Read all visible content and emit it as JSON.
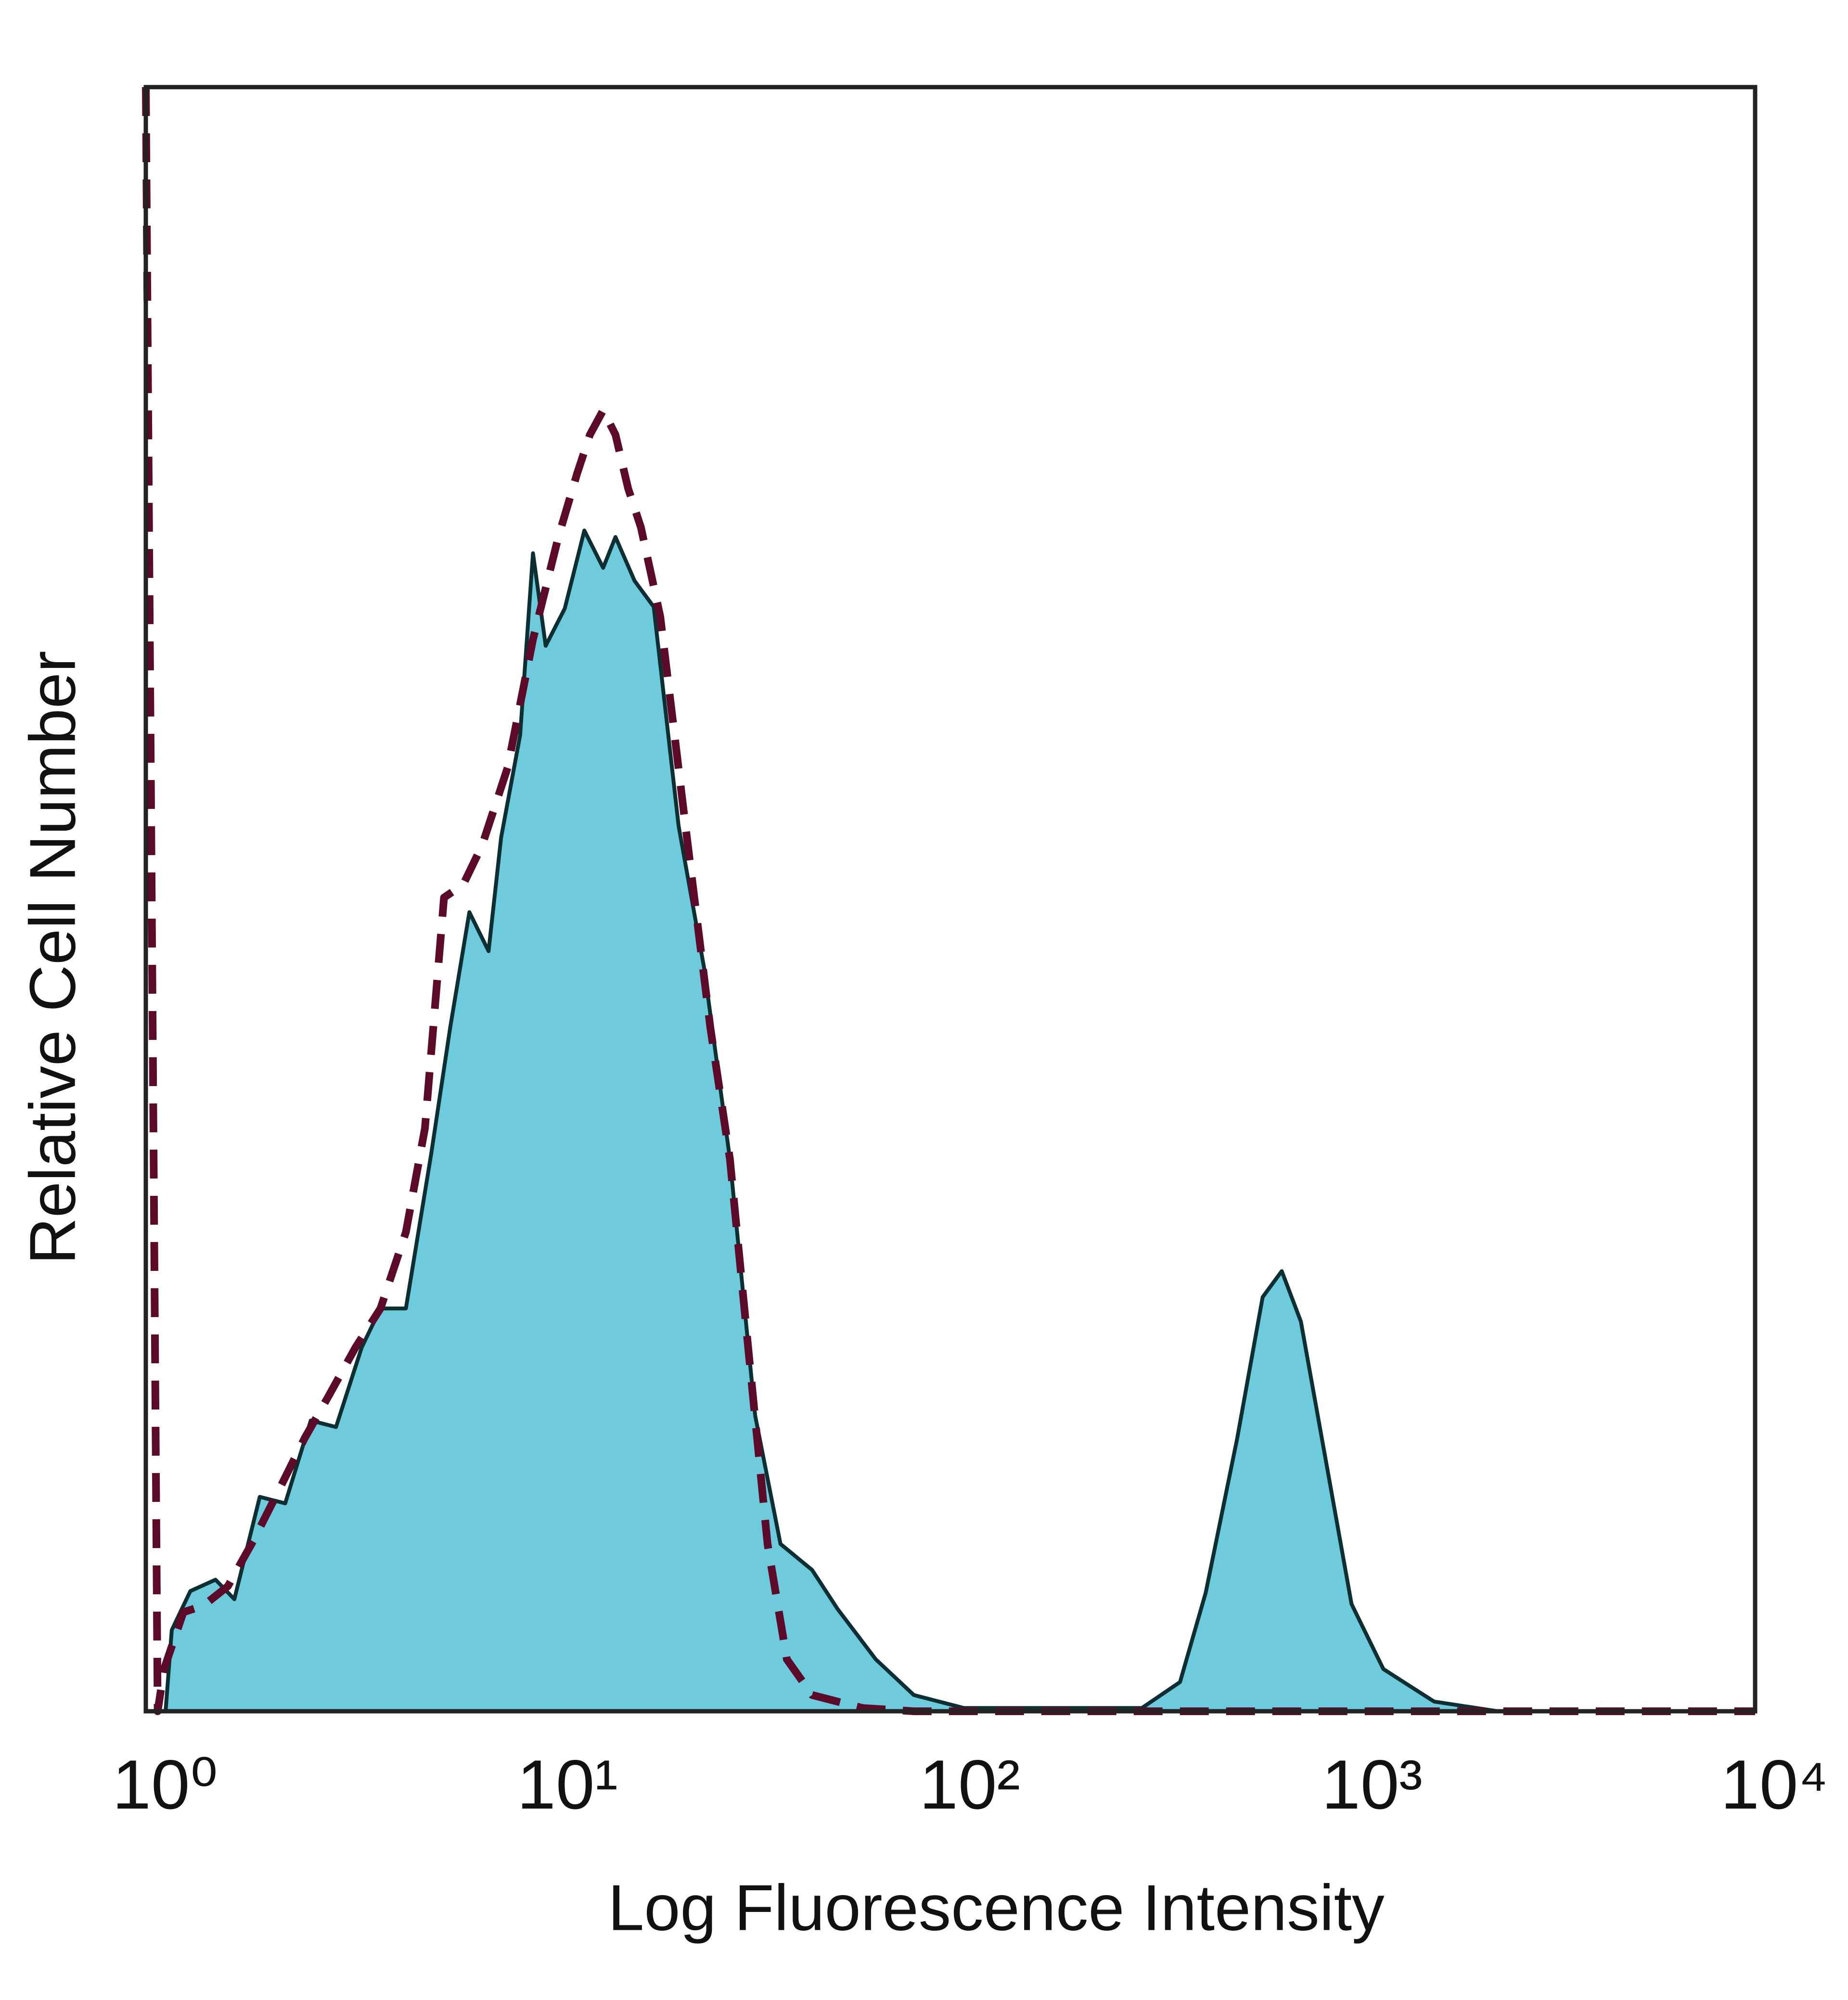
{
  "chart_data": {
    "type": "histogram-overlay",
    "x_label": "Log Fluorescence Intensity",
    "y_label": "Relative Cell Number",
    "log_x": true,
    "xlim": [
      1,
      10000
    ],
    "ylim": [
      0,
      100
    ],
    "xticks": [
      {
        "value": 1,
        "label": "10⁰"
      },
      {
        "value": 10,
        "label": "10¹"
      },
      {
        "value": 100,
        "label": "10²"
      },
      {
        "value": 1000,
        "label": "10³"
      },
      {
        "value": 10000,
        "label": "10⁴"
      }
    ],
    "series": [
      {
        "color": "#6ecbdc",
        "line_color": "#0b2f33",
        "filled": true,
        "dashed": false,
        "x": [
          1.12,
          1.16,
          1.29,
          1.49,
          1.66,
          1.92,
          2.22,
          2.57,
          2.97,
          3.44,
          3.83,
          4.43,
          5.12,
          5.71,
          6.37,
          7.11,
          7.64,
          8.52,
          9.17,
          9.86,
          11.0,
          12.3,
          13.7,
          14.7,
          16.4,
          18.3,
          21.1,
          24.4,
          28.3,
          32.7,
          37.8,
          45.3,
          52.4,
          65.2,
          81.1,
          108,
          299,
          372,
          431,
          516,
          597,
          666,
          743,
          859,
          993,
          1191,
          1592,
          2291,
          10000
        ],
        "values": [
          0,
          5.0,
          7.4,
          8.1,
          6.9,
          13.2,
          12.8,
          17.9,
          17.5,
          22.4,
          24.8,
          24.8,
          34.3,
          42.1,
          49.2,
          46.8,
          53.8,
          60.1,
          71.3,
          65.6,
          67.9,
          72.7,
          70.4,
          72.3,
          69.6,
          68.0,
          54.5,
          45.8,
          34.0,
          18.2,
          10.3,
          8.7,
          6.3,
          3.2,
          1.0,
          0.2,
          0.2,
          1.8,
          7.3,
          16.8,
          25.5,
          27.1,
          24.0,
          15.3,
          6.6,
          2.6,
          0.6,
          0,
          0
        ]
      },
      {
        "color": "#5c0a2a",
        "filled": false,
        "dashed": true,
        "x": [
          1.0,
          1.07,
          1.11,
          1.24,
          1.39,
          1.6,
          1.85,
          2.14,
          2.48,
          2.86,
          3.32,
          3.83,
          4.43,
          4.94,
          5.51,
          6.15,
          6.85,
          7.93,
          9.17,
          10.6,
          11.8,
          12.7,
          13.7,
          14.7,
          15.8,
          17.0,
          19.0,
          21.9,
          25.3,
          28.3,
          31.5,
          35.1,
          39.2,
          45.3,
          60.5,
          81.1,
          10000
        ],
        "values": [
          100,
          0,
          2.6,
          6.1,
          6.5,
          7.7,
          10.5,
          13.6,
          16.8,
          19.5,
          22.4,
          24.8,
          29.5,
          35.9,
          50.1,
          50.9,
          53.3,
          58.1,
          66.0,
          72.3,
          76.2,
          78.6,
          80.1,
          78.6,
          75.3,
          72.9,
          67.4,
          54.7,
          42.1,
          34.0,
          22.1,
          10.3,
          3.2,
          1.0,
          0.2,
          0,
          0
        ]
      }
    ]
  }
}
